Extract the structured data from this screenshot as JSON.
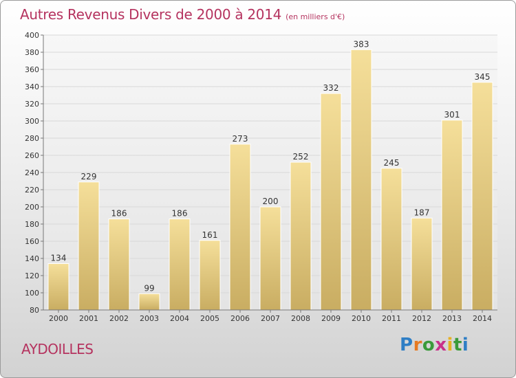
{
  "title": "Autres Revenus Divers de 2000 à 2014",
  "subtitle": "(en milliers d'€)",
  "commune": "AYDOILLES",
  "brand": {
    "text": "Proxiti",
    "letter_colors": [
      "#2e7ec5",
      "#e77a22",
      "#3a9a3a",
      "#c8318a",
      "#e7b022",
      "#3a9a3a",
      "#2e7ec5"
    ]
  },
  "colors": {
    "accent": "#b5335f",
    "bar_light": "#f5df9a",
    "bar_dark": "#c9ad62",
    "grid": "#d8d8d8",
    "axis": "#777777"
  },
  "chart_data": {
    "type": "bar",
    "categories": [
      "2000",
      "2001",
      "2002",
      "2003",
      "2004",
      "2005",
      "2006",
      "2007",
      "2008",
      "2009",
      "2010",
      "2011",
      "2012",
      "2013",
      "2014"
    ],
    "values": [
      134,
      229,
      186,
      99,
      186,
      161,
      273,
      200,
      252,
      332,
      383,
      245,
      187,
      301,
      345
    ],
    "ylim": [
      80,
      400
    ],
    "yticks": [
      80,
      100,
      120,
      140,
      160,
      180,
      200,
      220,
      240,
      260,
      280,
      300,
      320,
      340,
      360,
      380,
      400
    ],
    "grid": true
  }
}
